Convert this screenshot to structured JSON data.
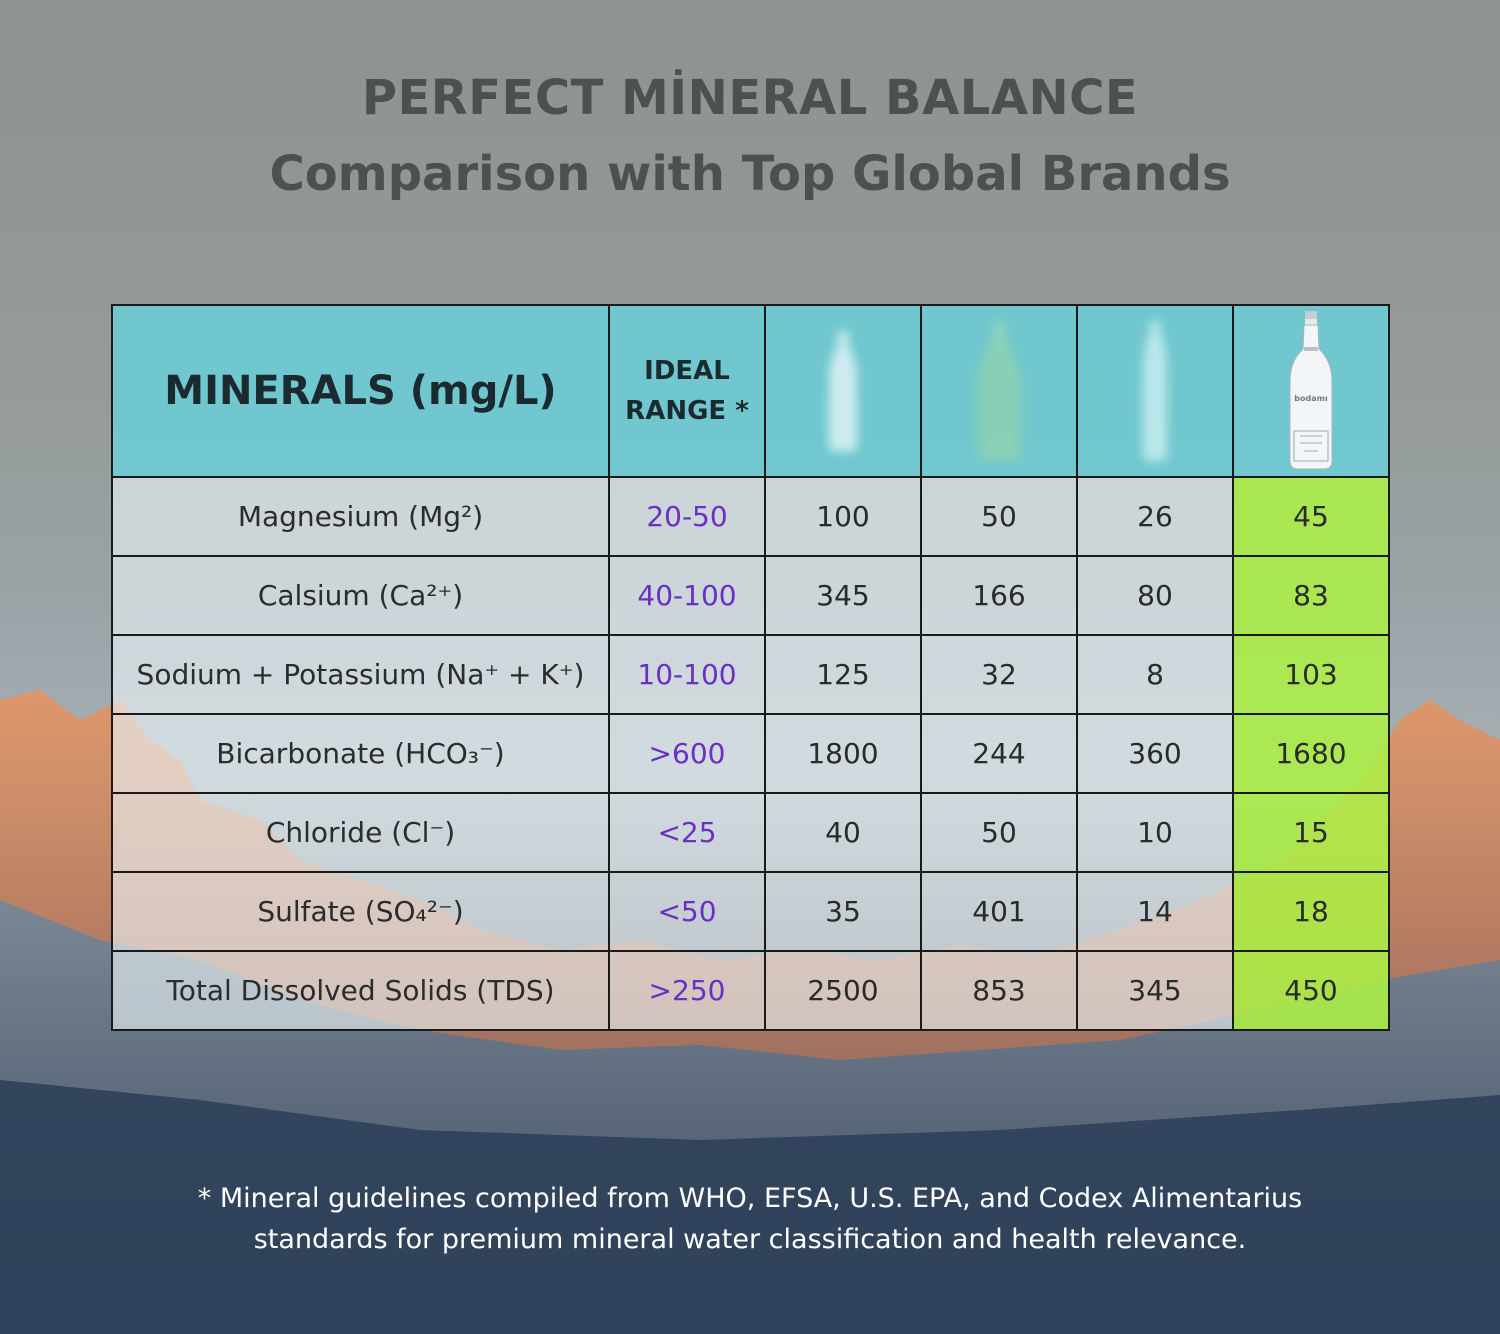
{
  "header": {
    "title_line_1": "PERFECT MİNERAL BALANCE",
    "title_line_2": "Comparison with Top Global Brands"
  },
  "table": {
    "col_minerals": "MINERALS (mg/L)",
    "col_range_line_1": "IDEAL",
    "col_range_line_2": "RANGE *",
    "bottle_brand_text": "bodamı",
    "rows": [
      {
        "mineral": "Magnesium (Mg²)",
        "range": "20-50",
        "b1": "100",
        "b2": "50",
        "b3": "26",
        "b4": "45"
      },
      {
        "mineral": "Calsium (Ca²⁺)",
        "range": "40-100",
        "b1": "345",
        "b2": "166",
        "b3": "80",
        "b4": "83"
      },
      {
        "mineral": "Sodium + Potassium (Na⁺ + K⁺)",
        "range": "10-100",
        "b1": "125",
        "b2": "32",
        "b3": "8",
        "b4": "103"
      },
      {
        "mineral": "Bicarbonate (HCO₃⁻)",
        "range": ">600",
        "b1": "1800",
        "b2": "244",
        "b3": "360",
        "b4": "1680"
      },
      {
        "mineral": "Chloride (Cl⁻)",
        "range": "<25",
        "b1": "40",
        "b2": "50",
        "b3": "10",
        "b4": "15"
      },
      {
        "mineral": "Sulfate (SO₄²⁻)",
        "range": "<50",
        "b1": "35",
        "b2": "401",
        "b3": "14",
        "b4": "18"
      },
      {
        "mineral": "Total Dissolved Solids (TDS)",
        "range": ">250",
        "b1": "2500",
        "b2": "853",
        "b3": "345",
        "b4": "450"
      }
    ]
  },
  "footnote": {
    "line_1": "* Mineral guidelines compiled from WHO, EFSA, U.S. EPA, and Codex Alimentarius",
    "line_2": "standards for premium mineral water classification and health relevance."
  },
  "colors": {
    "header_cell": "#66d4de",
    "highlight_column": "#adf046",
    "range_text": "#6a2fc4",
    "title_text": "#4e4f4f"
  }
}
